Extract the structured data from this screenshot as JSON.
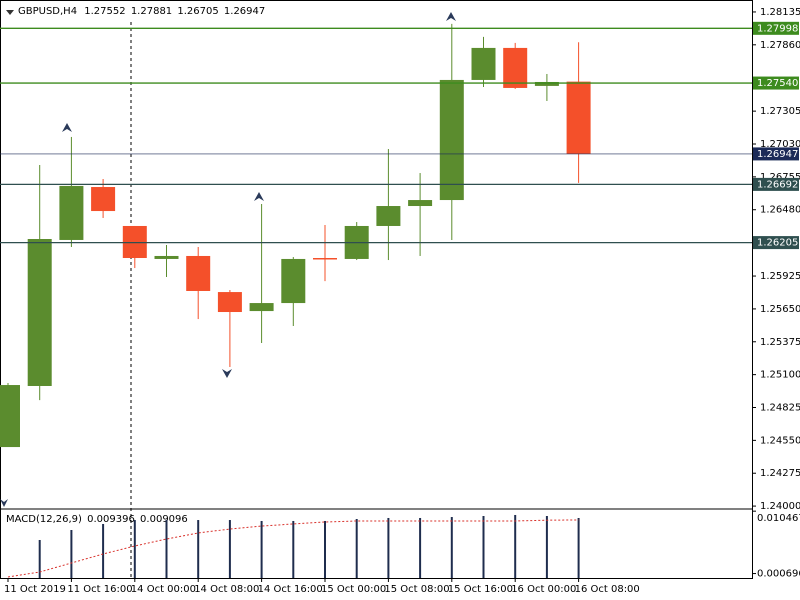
{
  "chart_data": [
    {
      "type": "candlestick",
      "title": "GBPUSD,H4",
      "header_values": [
        1.27552,
        1.27881,
        1.26705,
        1.26947
      ],
      "categories": [
        "11 Oct 2019",
        null,
        "11 Oct 16:00",
        null,
        "14 Oct 00:00",
        null,
        "14 Oct 08:00",
        null,
        "14 Oct 16:00",
        null,
        "15 Oct 00:00",
        null,
        "15 Oct 08:00",
        null,
        "15 Oct 16:00",
        null,
        "16 Oct 00:00",
        null,
        "16 Oct 08:00"
      ],
      "open": [
        1.24494,
        1.25005,
        1.26227,
        1.2667,
        1.26344,
        1.26068,
        1.26093,
        1.25791,
        1.25632,
        1.25699,
        1.26076,
        1.26068,
        1.26344,
        1.26511,
        1.26561,
        1.27566,
        1.27834,
        1.27516,
        1.27552
      ],
      "high": [
        1.2503,
        1.26854,
        1.27089,
        1.26737,
        1.26344,
        1.26185,
        1.26168,
        1.25808,
        1.26528,
        1.26084,
        1.26352,
        1.26377,
        1.26988,
        1.26787,
        1.28035,
        1.27926,
        1.27876,
        1.27616,
        1.27881
      ],
      "low": [
        1.24494,
        1.24887,
        1.26168,
        1.26411,
        1.25992,
        1.25917,
        1.25565,
        1.25164,
        1.25365,
        1.25507,
        1.25883,
        1.26059,
        1.26059,
        1.26093,
        1.26227,
        1.27507,
        1.27491,
        1.2739,
        1.26705
      ],
      "close": [
        1.25013,
        1.26235,
        1.26679,
        1.26469,
        1.26076,
        1.26093,
        1.258,
        1.25624,
        1.25699,
        1.26068,
        1.26068,
        1.26344,
        1.26511,
        1.26561,
        1.27566,
        1.27834,
        1.27499,
        1.27549,
        1.26947
      ],
      "up_color": "#5b8c2e",
      "down_color": "#f4502a",
      "ylim": [
        1.23984,
        1.28235
      ],
      "yticks": [
        1.28135,
        {
          "value": 1.2786,
          "label": "1.27860"
        },
        1.27305,
        {
          "value": 1.2703,
          "label": "1.27030"
        },
        1.26755,
        {
          "value": 1.2648,
          "label": "1.26480"
        },
        1.25925,
        {
          "value": 1.2565,
          "label": "1.25650"
        },
        1.25375,
        {
          "value": 1.251,
          "label": "1.25100"
        },
        1.24825,
        {
          "value": 1.2455,
          "label": "1.24550"
        },
        1.24275,
        {
          "value": 1.24,
          "label": "1.24000"
        }
      ],
      "levels": [
        {
          "price": 1.27998,
          "color": "#3d8b1e"
        },
        {
          "price": {
            "value": 1.2754,
            "label": "1.27540"
          },
          "color": "#3d8b1e"
        },
        {
          "price": 1.26947,
          "color": "#1b2a58"
        },
        {
          "price": 1.26692,
          "color": "#2f4f4f"
        },
        {
          "price": 1.26205,
          "color": "#2f4f4f"
        }
      ]
    },
    {
      "type": "macd",
      "title": "MACD(12,26,9)",
      "header_values": [
        0.009396,
        0.009096
      ],
      "histogram": [
        null,
        0.00595,
        0.00752,
        0.00846,
        0.00908,
        0.00908,
        0.00908,
        0.00908,
        0.00893,
        0.00893,
        0.00893,
        0.00924,
        0.0094,
        0.0094,
        0.00955,
        0.00971,
        0.00987,
        0.00971,
        0.009396
      ],
      "signal": [
        0.00016,
        0.00094,
        0.00235,
        0.00376,
        0.00501,
        0.00611,
        0.00705,
        0.00767,
        0.00814,
        0.00846,
        0.00877,
        0.00893,
        0.00893,
        0.00893,
        0.00893,
        0.00893,
        0.00893,
        0.00905,
        0.009096
      ],
      "hist_color": "#1f2d4e",
      "signal_color": "#d8302a",
      "ylim": [
        0,
        0.01065
      ],
      "yticks": [
        0.010467,
        0.000696
      ]
    }
  ]
}
